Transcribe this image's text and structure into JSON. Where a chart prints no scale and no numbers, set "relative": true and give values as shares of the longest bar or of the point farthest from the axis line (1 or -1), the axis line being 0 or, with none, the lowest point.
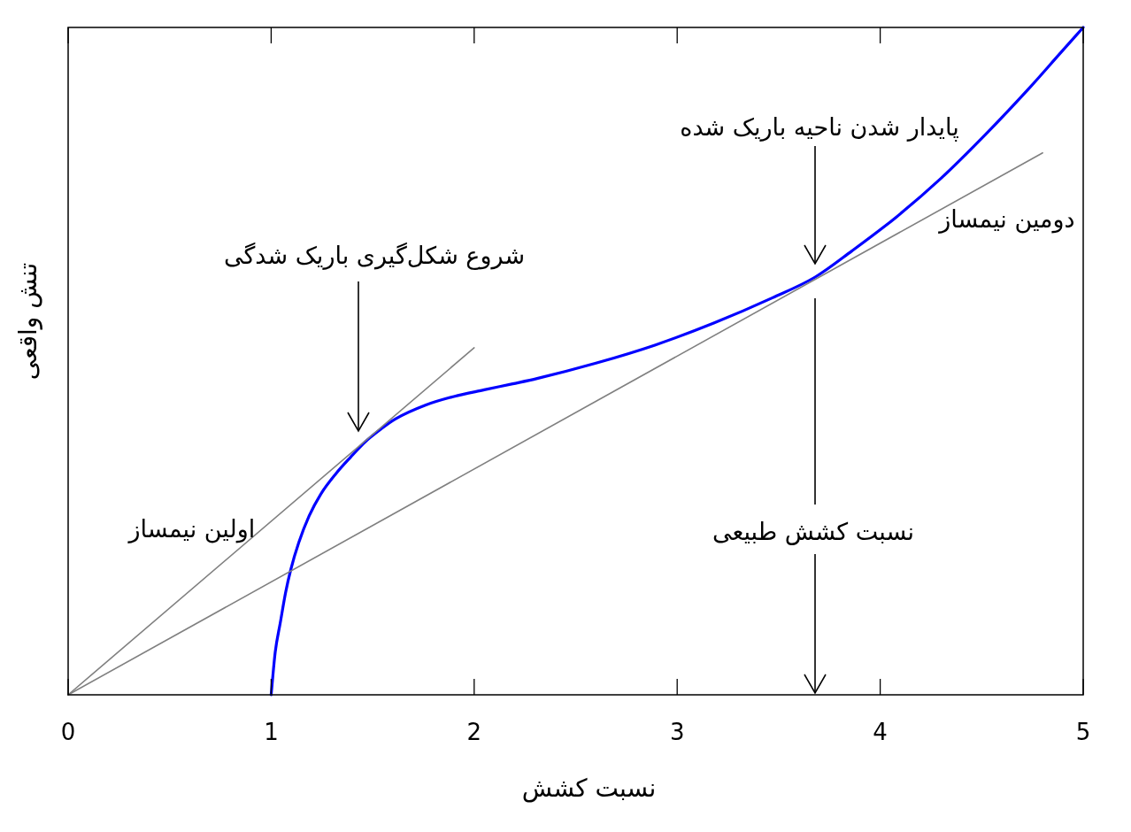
{
  "chart_data": {
    "type": "line",
    "xlabel": "نسبت کشش",
    "ylabel": "تنش واقعی",
    "relative": true,
    "xlim": [
      0,
      5
    ],
    "xticks": [
      0,
      1,
      2,
      3,
      4,
      5
    ],
    "series": [
      {
        "color": "#0000ff",
        "x": [
          1.0,
          1.02,
          1.045,
          1.071,
          1.097,
          1.136,
          1.187,
          1.245,
          1.318,
          1.391,
          1.463,
          1.54,
          1.61,
          1.76,
          1.9,
          2.05,
          2.19,
          2.31,
          2.6,
          2.89,
          3.18,
          3.47,
          3.68,
          3.86,
          4.08,
          4.3,
          4.52,
          4.74,
          4.88,
          5.0
        ],
        "values": [
          0,
          0.064,
          0.108,
          0.153,
          0.188,
          0.228,
          0.268,
          0.301,
          0.331,
          0.356,
          0.379,
          0.398,
          0.413,
          0.434,
          0.447,
          0.457,
          0.466,
          0.474,
          0.497,
          0.524,
          0.557,
          0.595,
          0.626,
          0.665,
          0.716,
          0.774,
          0.84,
          0.911,
          0.959,
          1.0
        ]
      },
      {
        "name": "اولین نیمساز",
        "color": "#808080",
        "x": [
          0,
          2.0
        ],
        "values": [
          0,
          0.52
        ]
      },
      {
        "name": "دومین نیمساز",
        "color": "#808080",
        "x": [
          0,
          4.8
        ],
        "values": [
          0,
          0.812
        ]
      }
    ],
    "annotations": [
      "شروع شکل‌گیری باریک شدگی",
      "پایدار شدن ناحیه باریک شده",
      "نسبت کشش طبیعی"
    ]
  }
}
